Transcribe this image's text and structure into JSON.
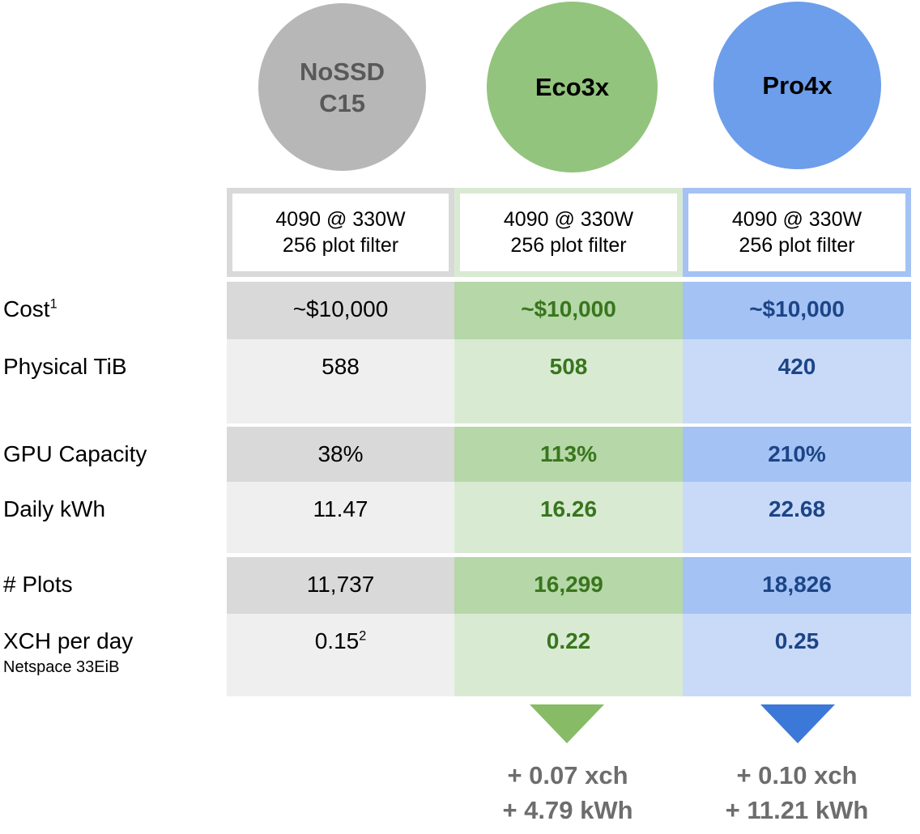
{
  "colors": {
    "gray_circle": "#b7b7b7",
    "gray_circle_text": "#595959",
    "green_circle": "#93c47d",
    "blue_circle": "#6d9eeb",
    "gray_dark_cell": "#d9d9d9",
    "gray_light_cell": "#efefef",
    "green_dark_cell": "#b6d7a8",
    "green_light_cell": "#d9ead3",
    "blue_dark_cell": "#a4c2f4",
    "blue_light_cell": "#c9daf8",
    "green_value_text": "#38761d",
    "blue_value_text": "#1c4587",
    "green_triangle": "#87bb66",
    "blue_triangle": "#3c78d8",
    "annotation_text": "#6d6d6d"
  },
  "circles": [
    {
      "id": "nossd-c15",
      "label_lines": [
        "NoSSD",
        "C15"
      ],
      "fill": "#b7b7b7",
      "text_color": "#595959"
    },
    {
      "id": "eco3x",
      "label_lines": [
        "Eco3x"
      ],
      "fill": "#93c47d",
      "text_color": "#000000"
    },
    {
      "id": "pro4x",
      "label_lines": [
        "Pro4x"
      ],
      "fill": "#6d9eeb",
      "text_color": "#000000"
    }
  ],
  "header": {
    "cells": [
      {
        "line1": "4090 @ 330W",
        "line2": "256 plot filter"
      },
      {
        "line1": "4090 @ 330W",
        "line2": "256 plot filter"
      },
      {
        "line1": "4090 @ 330W",
        "line2": "256 plot filter"
      }
    ]
  },
  "rows": [
    {
      "id": "cost",
      "label": "Cost",
      "label_sup": "1",
      "shade": "dark",
      "values": [
        "~$10,000",
        "~$10,000",
        "~$10,000"
      ]
    },
    {
      "id": "physical-tib",
      "label": "Physical TiB",
      "shade": "light",
      "values": [
        "588",
        "508",
        "420"
      ]
    },
    {
      "id": "gpu-capacity",
      "label": "GPU Capacity",
      "shade": "dark",
      "values": [
        "38%",
        "113%",
        "210%"
      ]
    },
    {
      "id": "daily-kwh",
      "label": "Daily kWh",
      "shade": "light",
      "values": [
        "11.47",
        "16.26",
        "22.68"
      ]
    },
    {
      "id": "num-plots",
      "label": "# Plots",
      "shade": "dark",
      "values": [
        "11,737",
        "16,299",
        "18,826"
      ]
    },
    {
      "id": "xch-per-day",
      "label": "XCH per day",
      "sublabel": "Netspace 33EiB",
      "shade": "light",
      "values": [
        "0.15",
        "0.22",
        "0.25"
      ],
      "value_sups": [
        "2",
        null,
        null
      ]
    }
  ],
  "footers": [
    {
      "column": "eco3x",
      "line1": "+ 0.07 xch",
      "line2": "+ 4.79 kWh"
    },
    {
      "column": "pro4x",
      "line1": "+ 0.10 xch",
      "line2": "+ 11.21 kWh"
    }
  ],
  "chart_data": {
    "type": "table",
    "title": "",
    "columns": [
      "NoSSD C15",
      "Eco3x",
      "Pro4x"
    ],
    "column_subheaders": [
      "4090 @ 330W, 256 plot filter",
      "4090 @ 330W, 256 plot filter",
      "4090 @ 330W, 256 plot filter"
    ],
    "rows": [
      {
        "label": "Cost¹",
        "values": [
          "~$10,000",
          "~$10,000",
          "~$10,000"
        ]
      },
      {
        "label": "Physical TiB",
        "values": [
          588,
          508,
          420
        ]
      },
      {
        "label": "GPU Capacity",
        "values": [
          "38%",
          "113%",
          "210%"
        ]
      },
      {
        "label": "Daily kWh",
        "values": [
          11.47,
          16.26,
          22.68
        ]
      },
      {
        "label": "# Plots",
        "values": [
          "11,737",
          "16,299",
          "18,826"
        ]
      },
      {
        "label": "XCH per day (Netspace 33EiB)",
        "values": [
          "0.15²",
          "0.22",
          "0.25"
        ]
      }
    ],
    "annotations": [
      {
        "column": "Eco3x",
        "lines": [
          "+ 0.07 xch",
          "+ 4.79 kWh"
        ]
      },
      {
        "column": "Pro4x",
        "lines": [
          "+ 0.10 xch",
          "+ 11.21 kWh"
        ]
      }
    ],
    "legend_position": "none",
    "grid": false
  }
}
